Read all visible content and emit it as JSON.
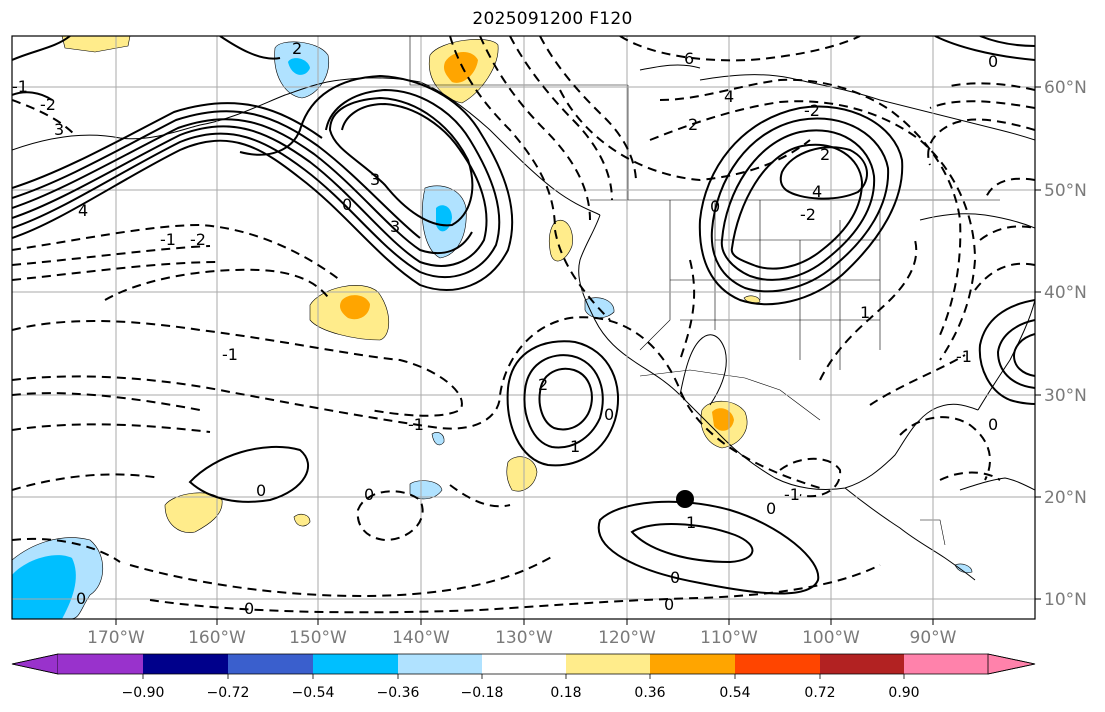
{
  "title": "2025091200 F120",
  "map": {
    "lon_labels": [
      "170°W",
      "160°W",
      "150°W",
      "140°W",
      "130°W",
      "120°W",
      "110°W",
      "100°W",
      "90°W"
    ],
    "lat_labels": [
      "60°N",
      "50°N",
      "40°N",
      "30°N",
      "20°N",
      "10°N"
    ],
    "contour_labels": [
      "2",
      "0",
      "6",
      "4",
      "-1",
      "3",
      "-2",
      "4",
      "3",
      "0",
      "3",
      "2",
      "-2",
      "4",
      "-2",
      "0",
      "-1",
      "-1",
      "2",
      "1",
      "0",
      "1",
      "0",
      "1",
      "0",
      "0",
      "0",
      "-1",
      "0",
      "0",
      "-1",
      "-2",
      "2",
      "-1",
      "0",
      "0"
    ]
  },
  "colorbar": {
    "ticks": [
      "−0.90",
      "−0.72",
      "−0.54",
      "−0.36",
      "−0.18",
      "0.18",
      "0.36",
      "0.54",
      "0.72",
      "0.90"
    ],
    "colors": [
      "#9932CC",
      "#00008B",
      "#3A5FCD",
      "#00BFFF",
      "#B0E2FF",
      "#FFFFFF",
      "#FFEC8B",
      "#FFA500",
      "#FF4500",
      "#B22222",
      "#FF82AB"
    ]
  },
  "marker": {
    "label": "storm center"
  }
}
